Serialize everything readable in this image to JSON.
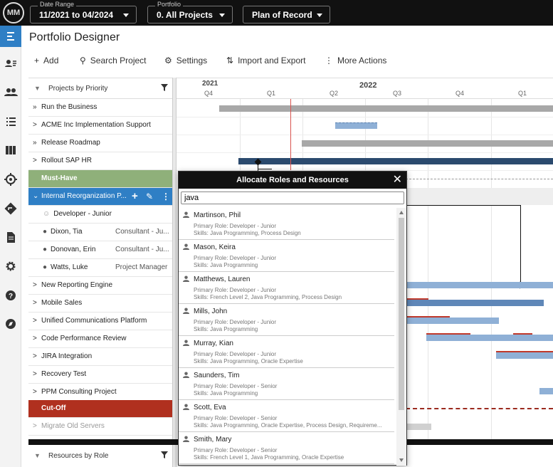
{
  "app": {
    "logo_text": "MM",
    "title": "Portfolio Designer"
  },
  "topbar": {
    "date_range": {
      "caption": "Date Range",
      "value": "11/2021 to 04/2024"
    },
    "portfolio": {
      "caption": "Portfolio",
      "value": "0. All Projects"
    },
    "plan": {
      "value": "Plan of Record"
    }
  },
  "nav": {
    "icons": [
      "list-icon",
      "contact-card-icon",
      "people-icon",
      "tasks-icon",
      "columns-icon",
      "target-icon",
      "directions-icon",
      "document-icon",
      "gear-icon",
      "help-icon",
      "compass-icon"
    ],
    "active_index": 0
  },
  "toolbar": {
    "add": "Add",
    "search": "Search Project",
    "settings": "Settings",
    "import_export": "Import and Export",
    "more": "More Actions"
  },
  "grid": {
    "header": "Projects by Priority",
    "years": [
      "2021",
      "2022"
    ],
    "quarters": [
      "Q4",
      "Q1",
      "Q2",
      "Q3",
      "Q4",
      "Q1"
    ],
    "rows": [
      {
        "label": "Run the Business",
        "chev": "»"
      },
      {
        "label": "ACME Inc Implementation Support",
        "chev": ">"
      },
      {
        "label": "Release Roadmap",
        "chev": "»"
      },
      {
        "label": "Rollout SAP HR",
        "chev": ">"
      },
      {
        "label": "Must-Have",
        "type": "group",
        "color": "#8fb07a"
      },
      {
        "label": "Internal Reorganization P...",
        "chev": "v",
        "type": "selected"
      },
      {
        "label": "Developer - Junior",
        "type": "sub",
        "icon": "outline"
      },
      {
        "label": "Dixon, Tia",
        "role": "Consultant - Ju...",
        "type": "sub"
      },
      {
        "label": "Donovan, Erin",
        "role": "Consultant - Ju...",
        "type": "sub"
      },
      {
        "label": "Watts, Luke",
        "role": "Project Manager",
        "type": "sub"
      },
      {
        "label": "New Reporting Engine",
        "chev": ">"
      },
      {
        "label": "Mobile Sales",
        "chev": ">"
      },
      {
        "label": "Unified Communications Platform",
        "chev": ">"
      },
      {
        "label": "Code Performance Review",
        "chev": ">"
      },
      {
        "label": "JIRA Integration",
        "chev": ">"
      },
      {
        "label": "Recovery Test",
        "chev": ">"
      },
      {
        "label": "PPM Consulting Project",
        "chev": ">"
      },
      {
        "label": "Cut-Off",
        "type": "group",
        "color": "#b0301f"
      },
      {
        "label": "Migrate Old Servers",
        "chev": ">",
        "type": "muted"
      }
    ],
    "bottom_header": "Resources by Role"
  },
  "modal": {
    "title": "Allocate Roles and Resources",
    "search_value": "java",
    "people": [
      {
        "name": "Martinson, Phil",
        "role": "Primary Role: Developer - Junior",
        "skills": "Skills: Java Programming, Process Design"
      },
      {
        "name": "Mason, Keira",
        "role": "Primary Role: Developer - Junior",
        "skills": "Skills: Java Programming"
      },
      {
        "name": "Matthews, Lauren",
        "role": "Primary Role: Developer - Junior",
        "skills": "Skills: French Level 2, Java Programming, Process Design"
      },
      {
        "name": "Mills, John",
        "role": "Primary Role: Developer - Junior",
        "skills": "Skills: Java Programming"
      },
      {
        "name": "Murray, Kian",
        "role": "Primary Role: Developer - Junior",
        "skills": "Skills: Java Programming, Oracle Expertise"
      },
      {
        "name": "Saunders, Tim",
        "role": "Primary Role: Developer - Senior",
        "skills": "Skills: Java Programming"
      },
      {
        "name": "Scott, Eva",
        "role": "Primary Role: Developer - Senior",
        "skills": "Skills: Java Programming, Oracle Expertise, Process Design, Requireme..."
      },
      {
        "name": "Smith, Mary",
        "role": "Primary Role: Developer - Senior",
        "skills": "Skills: French Level 1, Java Programming, Oracle Expertise"
      }
    ]
  },
  "colors": {
    "accent": "#2f7fc5",
    "bar_gray": "#a8a8a8",
    "bar_blue": "#8fb0d6",
    "bar_dark": "#2b4a6e",
    "today": "#d9534f"
  }
}
